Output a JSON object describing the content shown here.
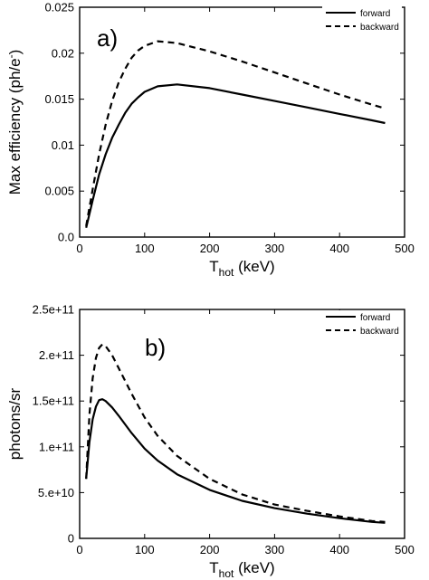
{
  "chart_data": [
    {
      "type": "line",
      "panel_label": "a)",
      "xlabel": {
        "main": "T",
        "sub": "hot",
        "rest": " (keV)"
      },
      "ylabel": {
        "main": "Max efficiency (ph/e",
        "sup": "-",
        "rest": ")"
      },
      "xlim": [
        0,
        500
      ],
      "ylim": [
        0,
        0.025
      ],
      "xticks": [
        0,
        100,
        200,
        300,
        400,
        500
      ],
      "xtick_labels": [
        "0",
        "100",
        "200",
        "300",
        "400",
        "500"
      ],
      "yticks": [
        0,
        0.005,
        0.01,
        0.015,
        0.02,
        0.025
      ],
      "ytick_labels": [
        "0.0",
        "0.005",
        "0.01",
        "0.015",
        "0.02",
        "0.025"
      ],
      "legend_position": "top-right",
      "grid": false,
      "series": [
        {
          "name": "forward",
          "style": "solid",
          "x": [
            10,
            20,
            30,
            40,
            50,
            60,
            70,
            80,
            90,
            100,
            120,
            150,
            200,
            250,
            300,
            350,
            400,
            450,
            470
          ],
          "y": [
            0.001,
            0.004,
            0.0068,
            0.009,
            0.0108,
            0.0122,
            0.0135,
            0.0145,
            0.0152,
            0.0158,
            0.0164,
            0.0166,
            0.0162,
            0.0155,
            0.0148,
            0.0141,
            0.0134,
            0.0127,
            0.0124
          ]
        },
        {
          "name": "backward",
          "style": "dashed",
          "x": [
            10,
            20,
            30,
            40,
            50,
            60,
            70,
            80,
            90,
            100,
            120,
            150,
            200,
            250,
            300,
            350,
            400,
            450,
            470
          ],
          "y": [
            0.0012,
            0.0052,
            0.009,
            0.0122,
            0.0148,
            0.0168,
            0.0183,
            0.0195,
            0.0203,
            0.0208,
            0.0213,
            0.0211,
            0.0202,
            0.0191,
            0.0179,
            0.0167,
            0.0155,
            0.0144,
            0.014
          ]
        }
      ]
    },
    {
      "type": "line",
      "panel_label": "b)",
      "xlabel": {
        "main": "T",
        "sub": "hot",
        "rest": " (keV)"
      },
      "ylabel": {
        "main": "photons/sr",
        "sup": "",
        "rest": ""
      },
      "xlim": [
        0,
        500
      ],
      "ylim": [
        0,
        250000000000.0
      ],
      "xticks": [
        0,
        100,
        200,
        300,
        400,
        500
      ],
      "xtick_labels": [
        "0",
        "100",
        "200",
        "300",
        "400",
        "500"
      ],
      "yticks": [
        0,
        50000000000.0,
        100000000000.0,
        150000000000.0,
        200000000000.0,
        250000000000.0
      ],
      "ytick_labels": [
        "0",
        "5.e+10",
        "1.e+11",
        "1.5e+11",
        "2.e+11",
        "2.5e+11"
      ],
      "legend_position": "top-right",
      "grid": false,
      "series": [
        {
          "name": "forward",
          "style": "solid",
          "x": [
            10,
            15,
            20,
            25,
            30,
            35,
            40,
            50,
            60,
            80,
            100,
            120,
            150,
            200,
            250,
            300,
            350,
            400,
            450,
            470
          ],
          "y": [
            65000000000.0,
            105000000000.0,
            130000000000.0,
            144000000000.0,
            151000000000.0,
            152000000000.0,
            150000000000.0,
            143000000000.0,
            134000000000.0,
            115000000000.0,
            98000000000.0,
            85000000000.0,
            70000000000.0,
            53000000000.0,
            41000000000.0,
            33000000000.0,
            27000000000.0,
            22000000000.0,
            18000000000.0,
            17000000000.0
          ]
        },
        {
          "name": "backward",
          "style": "dashed",
          "x": [
            10,
            15,
            20,
            25,
            30,
            35,
            40,
            50,
            60,
            80,
            100,
            120,
            150,
            200,
            250,
            300,
            350,
            400,
            450,
            470
          ],
          "y": [
            65000000000.0,
            135000000000.0,
            175000000000.0,
            197000000000.0,
            208000000000.0,
            212000000000.0,
            210000000000.0,
            200000000000.0,
            186000000000.0,
            158000000000.0,
            132000000000.0,
            112000000000.0,
            90000000000.0,
            65000000000.0,
            48000000000.0,
            37000000000.0,
            30000000000.0,
            24000000000.0,
            19000000000.0,
            18000000000.0
          ]
        }
      ]
    }
  ]
}
